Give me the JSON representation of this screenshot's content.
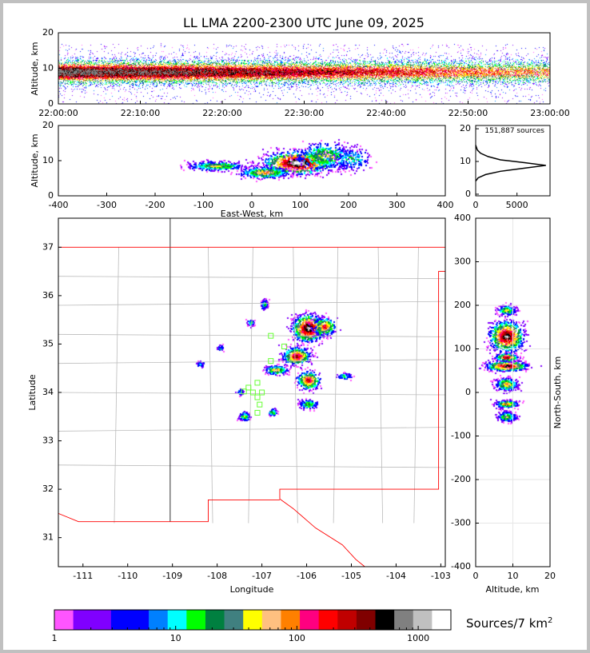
{
  "chart_data": {
    "type": "heatmap",
    "title": "LL LMA 2200-2300 UTC June 09, 2025",
    "total_sources_label": "151,887 sources",
    "panels": {
      "time_height": {
        "ylabel": "Altitude, km",
        "ylim": [
          0,
          20
        ],
        "yticks": [
          "0",
          "10",
          "20"
        ],
        "xlim": [
          "22:00:00",
          "23:00:00"
        ],
        "xticks": [
          "22:00:00",
          "22:10:00",
          "22:20:00",
          "22:30:00",
          "22:40:00",
          "22:50:00",
          "23:00:00"
        ],
        "band_km": [
          3,
          17
        ],
        "peak_km": 9
      },
      "ew_height": {
        "xlabel": "East-West, km",
        "ylabel": "Altitude, km",
        "xlim": [
          -400,
          400
        ],
        "ylim": [
          0,
          20
        ],
        "xticks": [
          "-400",
          "-300",
          "-200",
          "-100",
          "0",
          "100",
          "200",
          "300",
          "400"
        ],
        "yticks": [
          "0",
          "10",
          "20"
        ]
      },
      "altitude_histogram": {
        "xlim": [
          0,
          9000
        ],
        "ylim": [
          0,
          20
        ],
        "xticks": [
          "0",
          "5000"
        ],
        "yticks": [
          "0",
          "10",
          "20"
        ],
        "profile": [
          [
            0,
            4
          ],
          [
            300,
            5
          ],
          [
            1200,
            6
          ],
          [
            3000,
            7
          ],
          [
            6000,
            8
          ],
          [
            8500,
            8.8
          ],
          [
            6000,
            9.6
          ],
          [
            3000,
            10.5
          ],
          [
            1500,
            11.5
          ],
          [
            600,
            12.5
          ],
          [
            200,
            13.5
          ],
          [
            0,
            15
          ]
        ]
      },
      "plan_view": {
        "xlabel": "Longitude",
        "ylabel": "Latitude",
        "xlim": [
          -111.55,
          -102.9
        ],
        "ylim": [
          30.4,
          37.6
        ],
        "xticks": [
          "-111",
          "-110",
          "-109",
          "-108",
          "-107",
          "-106",
          "-105",
          "-104",
          "-103"
        ],
        "yticks": [
          "31",
          "32",
          "33",
          "34",
          "35",
          "36",
          "37"
        ]
      },
      "ns_height": {
        "xlabel": "Altitude, km",
        "ylabel": "North-South, km",
        "xlim": [
          0,
          20
        ],
        "ylim": [
          -400,
          400
        ],
        "xticks": [
          "0",
          "10",
          "20"
        ],
        "yticks": [
          "-400",
          "-300",
          "-200",
          "-100",
          "0",
          "100",
          "200",
          "300",
          "400"
        ]
      }
    },
    "colorbar": {
      "label": "Sources/7 km",
      "label_sup": "2",
      "scale": "log",
      "range": [
        1,
        1800
      ],
      "ticks": [
        "1",
        "10",
        "100",
        "1000"
      ],
      "colors": [
        "#ff55ff",
        "#8000ff",
        "#8000ff",
        "#0000ff",
        "#0000ff",
        "#0080ff",
        "#00ffff",
        "#00ff00",
        "#008040",
        "#408080",
        "#ffff00",
        "#ffc080",
        "#ff8000",
        "#ff0080",
        "#ff0000",
        "#c00000",
        "#800000",
        "#000000",
        "#808080",
        "#c0c0c0",
        "#ffffff"
      ]
    }
  }
}
